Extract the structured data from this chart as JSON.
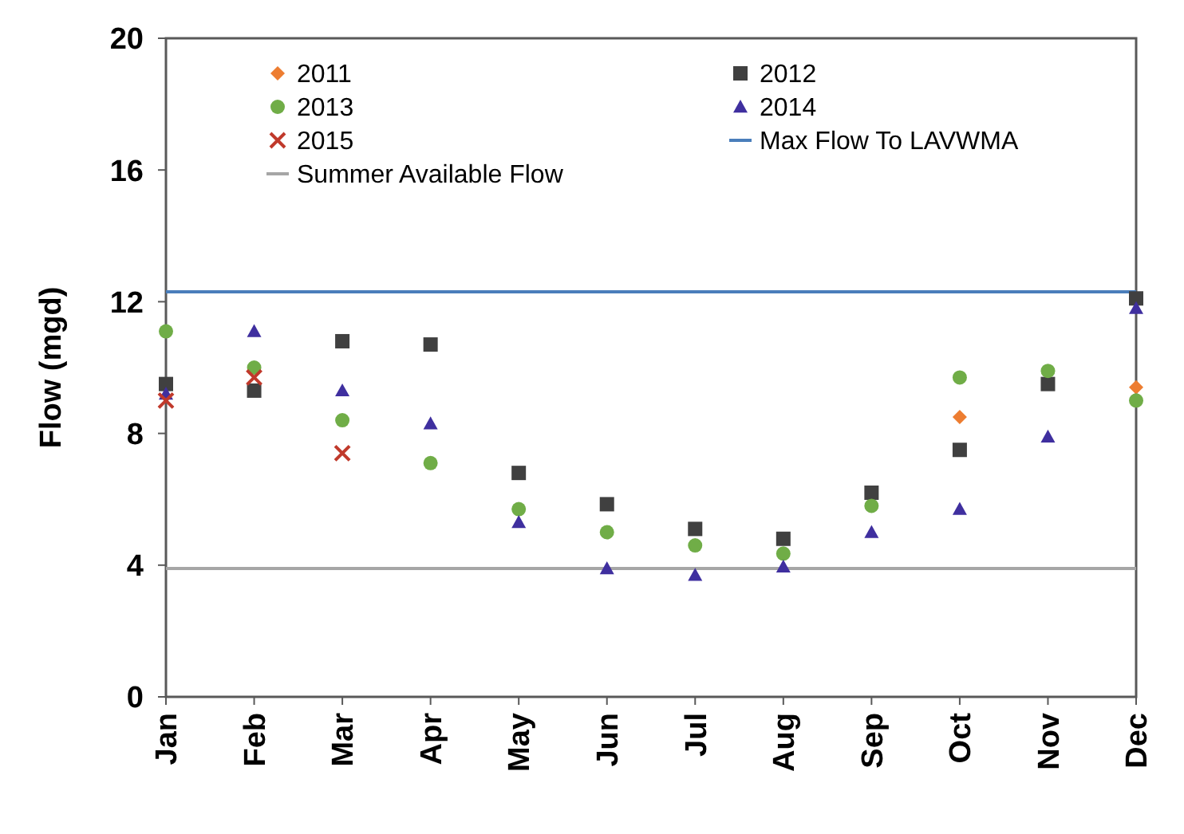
{
  "chart_data": {
    "type": "scatter",
    "ylabel": "Flow (mgd)",
    "categories": [
      "Jan",
      "Feb",
      "Mar",
      "Apr",
      "May",
      "Jun",
      "Jul",
      "Aug",
      "Sep",
      "Oct",
      "Nov",
      "Dec"
    ],
    "series": [
      {
        "name": "2011",
        "color": "#ed7d31",
        "marker": "diamond",
        "values": [
          null,
          null,
          null,
          null,
          null,
          null,
          null,
          null,
          null,
          8.5,
          null,
          9.4
        ]
      },
      {
        "name": "2012",
        "color": "#404040",
        "marker": "square",
        "values": [
          9.5,
          9.3,
          10.8,
          10.7,
          6.8,
          5.85,
          5.1,
          4.8,
          6.2,
          7.5,
          9.5,
          12.1
        ]
      },
      {
        "name": "2013",
        "color": "#70ad47",
        "marker": "circle",
        "values": [
          11.1,
          10.0,
          8.4,
          7.1,
          5.7,
          5.0,
          4.6,
          4.35,
          5.8,
          9.7,
          9.9,
          9.0
        ]
      },
      {
        "name": "2014",
        "color": "#3f2f9f",
        "marker": "triangle",
        "values": [
          9.2,
          11.1,
          9.3,
          8.3,
          5.3,
          3.9,
          3.7,
          3.95,
          5.0,
          5.7,
          7.9,
          11.8
        ]
      },
      {
        "name": "2015",
        "color": "#c0392b",
        "marker": "cross",
        "values": [
          9.0,
          9.7,
          7.4,
          null,
          null,
          null,
          null,
          null,
          null,
          null,
          null,
          null
        ]
      }
    ],
    "ref_lines": [
      {
        "axis": "y",
        "value": 12.3,
        "label": "Max Flow To LAVWMA",
        "color": "#4a7ebb"
      },
      {
        "axis": "y",
        "value": 3.9,
        "label": "Summer Available Flow",
        "color": "#a6a6a6"
      }
    ],
    "ylim": [
      0,
      20
    ],
    "yticks": [
      0,
      4,
      8,
      12,
      16,
      20
    ],
    "grid": false,
    "legend": "top"
  }
}
